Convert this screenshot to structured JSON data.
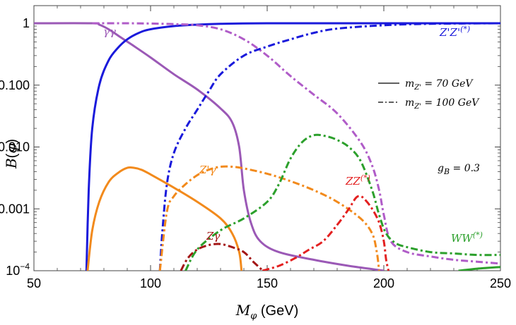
{
  "chart_data": {
    "type": "line",
    "xlabel": "M_φ (GeV)",
    "ylabel": "B(φ)",
    "xlim": [
      50,
      250
    ],
    "ylim": [
      0.0001,
      1.2
    ],
    "y_scale": "log",
    "grid": false,
    "x_ticks": [
      50,
      100,
      150,
      200,
      250
    ],
    "x_tick_labels": [
      "50",
      "100",
      "150",
      "200",
      "250"
    ],
    "y_ticks": [
      0.0001,
      0.001,
      0.01,
      0.1,
      1
    ],
    "y_tick_labels": [
      "10^-4",
      "0.001",
      "0.010",
      "0.100",
      "1"
    ],
    "legend": [
      {
        "style": "solid",
        "label": "m_Z' = 70 GeV"
      },
      {
        "style": "dashdot",
        "label": "m_Z' = 100 GeV"
      }
    ],
    "annotation": "g_B = 0.3",
    "curve_labels": {
      "gg": "γγ",
      "zpzp": "Z'Z'",
      "zpzp_sup": "(*)",
      "zpg": "Z'γ",
      "zg": "Zγ",
      "zz": "ZZ",
      "zz_sup": "(*)",
      "ww": "WW",
      "ww_sup": "(*)"
    },
    "series": [
      {
        "id": "gg_solid",
        "color": "#9b59b6",
        "style": "solid",
        "x": [
          50,
          75,
          78,
          82,
          87,
          92,
          100,
          110,
          120,
          130,
          135,
          138,
          140,
          143,
          147,
          155,
          170,
          185,
          200
        ],
        "y": [
          1,
          1,
          0.95,
          0.8,
          0.6,
          0.45,
          0.28,
          0.15,
          0.085,
          0.042,
          0.025,
          0.01,
          0.002,
          0.0006,
          0.0003,
          0.0002,
          0.00015,
          0.00012,
          0.0001
        ]
      },
      {
        "id": "zpzp_solid",
        "color": "#1a1adb",
        "style": "solid",
        "x": [
          72.5,
          73.5,
          75,
          78,
          82,
          86,
          90,
          95,
          100,
          110,
          120,
          130,
          150,
          200,
          250
        ],
        "y": [
          0.0001,
          0.002,
          0.02,
          0.1,
          0.25,
          0.4,
          0.55,
          0.7,
          0.8,
          0.9,
          0.95,
          0.98,
          1,
          1,
          1
        ]
      },
      {
        "id": "zpg_solid",
        "color": "#f28a1c",
        "style": "solid",
        "x": [
          73,
          75,
          78,
          82,
          86,
          90,
          93,
          96,
          100,
          110,
          120,
          130,
          135,
          138,
          139
        ],
        "y": [
          0.0001,
          0.00045,
          0.0013,
          0.0027,
          0.0038,
          0.0046,
          0.0046,
          0.0043,
          0.0036,
          0.0022,
          0.0013,
          0.0007,
          0.0004,
          0.0002,
          0.0001
        ]
      },
      {
        "id": "ww_solid",
        "color": "#2ca02c",
        "style": "solid",
        "x": [
          232,
          240,
          250
        ],
        "y": [
          0.0001,
          0.000108,
          0.000115
        ]
      },
      {
        "id": "gg_dashdot",
        "color": "#b05cc8",
        "style": "dashdot",
        "x": [
          75,
          90,
          100,
          110,
          120,
          130,
          140,
          150,
          160,
          170,
          180,
          190,
          195,
          198,
          200,
          203,
          210,
          220,
          230,
          240,
          250
        ],
        "y": [
          1,
          1,
          0.99,
          0.97,
          0.93,
          0.8,
          0.55,
          0.3,
          0.14,
          0.07,
          0.035,
          0.012,
          0.005,
          0.002,
          0.0008,
          0.0003,
          0.0002,
          0.00017,
          0.00015,
          0.00014,
          0.00013
        ]
      },
      {
        "id": "zpzp_dashdot",
        "color": "#1a1adb",
        "style": "dashdot",
        "x": [
          104,
          105,
          107,
          110,
          115,
          120,
          125,
          130,
          140,
          150,
          160,
          170,
          180,
          200,
          220,
          250
        ],
        "y": [
          0.0001,
          0.0004,
          0.0025,
          0.008,
          0.02,
          0.04,
          0.08,
          0.15,
          0.3,
          0.42,
          0.55,
          0.7,
          0.82,
          0.93,
          0.98,
          1
        ]
      },
      {
        "id": "zpg_dashdot",
        "color": "#f28a1c",
        "style": "dashdot",
        "x": [
          104,
          107,
          110,
          115,
          120,
          125,
          130,
          135,
          140,
          150,
          160,
          170,
          180,
          190,
          195,
          197,
          198
        ],
        "y": [
          0.0001,
          0.0009,
          0.0016,
          0.0025,
          0.0035,
          0.0043,
          0.0048,
          0.0048,
          0.0045,
          0.0037,
          0.0028,
          0.002,
          0.0013,
          0.0007,
          0.0004,
          0.0002,
          0.0001
        ]
      },
      {
        "id": "zg_dashdot",
        "color": "#a31515",
        "style": "dashdot",
        "x": [
          113,
          116,
          120,
          125,
          130,
          135,
          140,
          144,
          147,
          148
        ],
        "y": [
          0.0001,
          0.00016,
          0.00022,
          0.00026,
          0.00027,
          0.00024,
          0.0002,
          0.00014,
          0.00011,
          0.0001
        ]
      },
      {
        "id": "zz_dashdot",
        "color": "#e32020",
        "style": "dashdot",
        "x": [
          148,
          155,
          162,
          168,
          174,
          180,
          185,
          188,
          190,
          192,
          195,
          198,
          200,
          201,
          202
        ],
        "y": [
          0.0001,
          0.00012,
          0.00016,
          0.00022,
          0.0003,
          0.00055,
          0.001,
          0.0015,
          0.0016,
          0.0014,
          0.001,
          0.0006,
          0.0003,
          0.00015,
          0.0001
        ]
      },
      {
        "id": "ww_dashdot",
        "color": "#2ca02c",
        "style": "dashdot",
        "x": [
          115,
          120,
          130,
          140,
          150,
          155,
          160,
          165,
          170,
          175,
          180,
          185,
          190,
          195,
          198,
          201,
          205,
          210,
          220,
          230,
          240,
          250
        ],
        "y": [
          0.0001,
          0.00022,
          0.00045,
          0.0007,
          0.0013,
          0.0025,
          0.0065,
          0.012,
          0.0155,
          0.015,
          0.013,
          0.01,
          0.006,
          0.002,
          0.0008,
          0.0004,
          0.00028,
          0.00024,
          0.0002,
          0.00019,
          0.00018,
          0.00018
        ]
      }
    ]
  }
}
